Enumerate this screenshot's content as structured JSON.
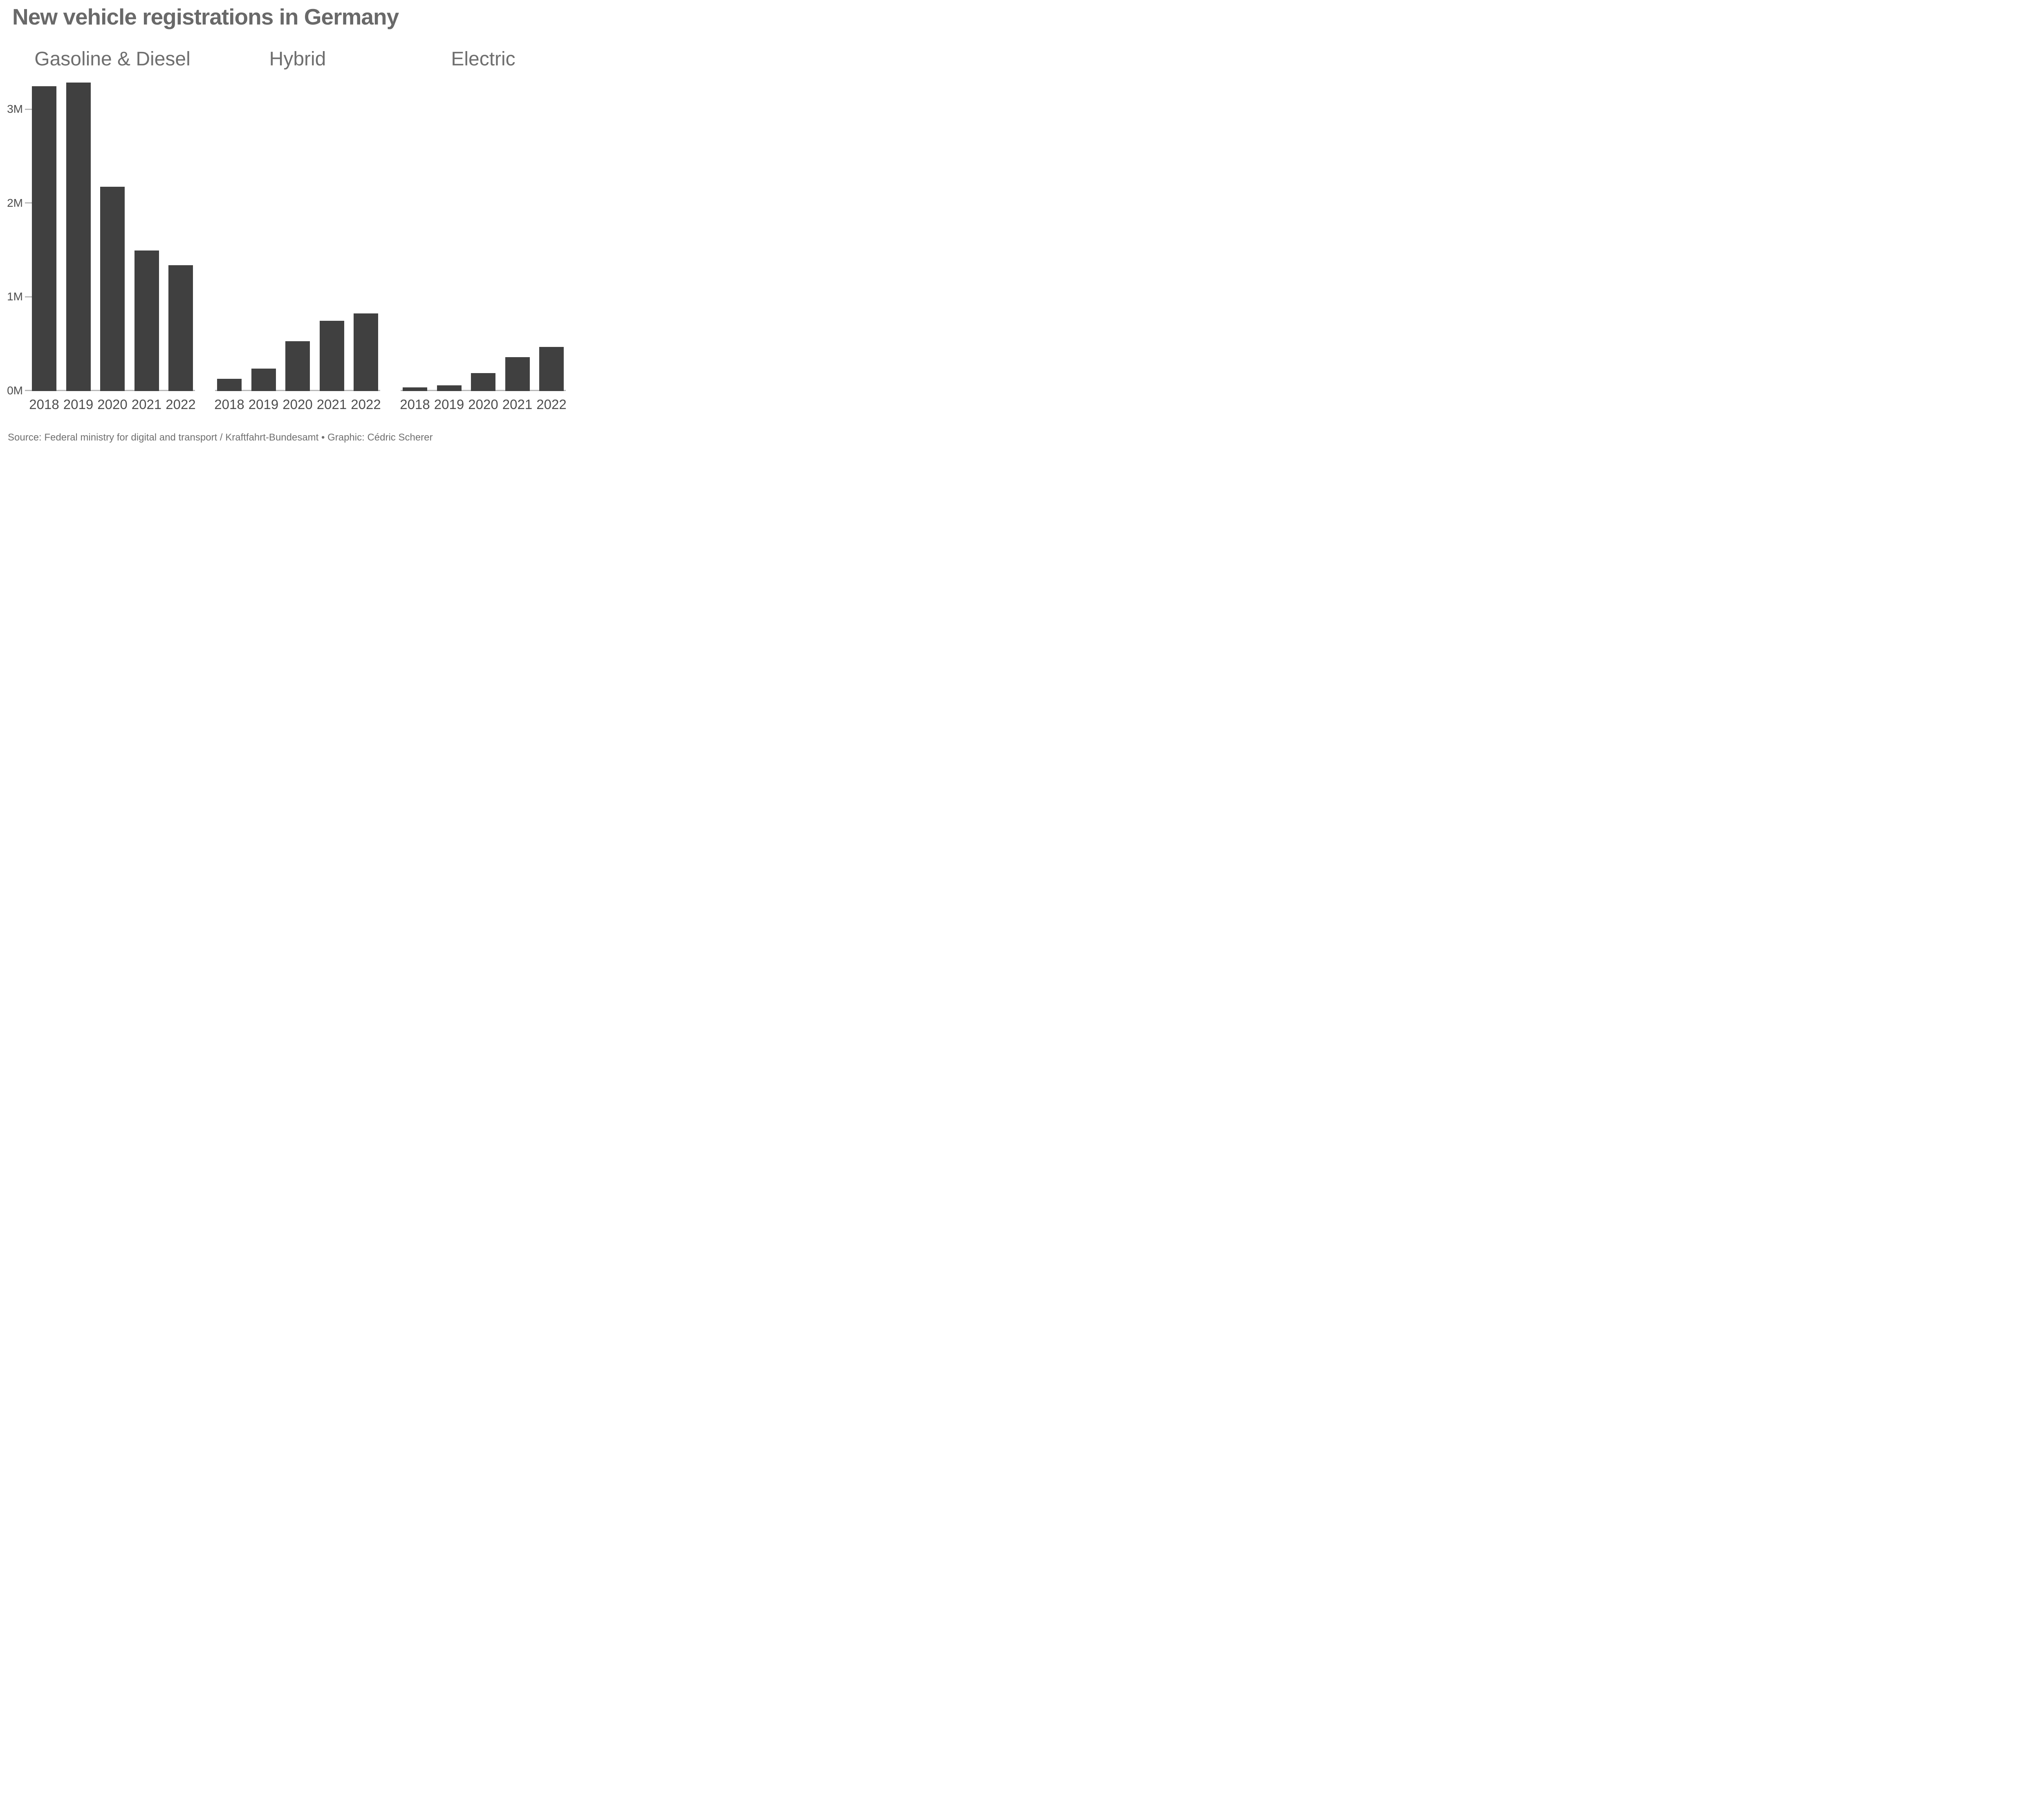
{
  "title": "New vehicle registrations in Germany",
  "source_note": "Source: Federal ministry for digital and transport / Kraftfahrt-Bundesamt • Graphic: Cédric Scherer",
  "colors": {
    "bar": "#404040",
    "title_text": "#696969",
    "facet_text": "#6e6e6e",
    "axis_text": "#4d4d4d",
    "axis_line": "#b9b9b9",
    "background": "#ffffff"
  },
  "chart_data": {
    "type": "bar",
    "title": "New vehicle registrations in Germany",
    "categories": [
      "2018",
      "2019",
      "2020",
      "2021",
      "2022"
    ],
    "series": [
      {
        "name": "Gasoline & Diesel",
        "values": [
          3.25,
          3.29,
          2.18,
          1.5,
          1.34
        ]
      },
      {
        "name": "Hybrid",
        "values": [
          0.13,
          0.24,
          0.53,
          0.75,
          0.83
        ]
      },
      {
        "name": "Electric",
        "values": [
          0.04,
          0.06,
          0.19,
          0.36,
          0.47
        ]
      }
    ],
    "unit": "millions of vehicles",
    "xlabel": "",
    "ylabel": "",
    "ylim": [
      0,
      3.45
    ],
    "y_tick_values": [
      0,
      1,
      2,
      3
    ],
    "y_tick_labels": [
      "0M",
      "1M",
      "2M",
      "3M"
    ],
    "grid": false,
    "legend": false,
    "layout": "3 facet panels side by side, shared y axis, y ticks only on first panel"
  }
}
